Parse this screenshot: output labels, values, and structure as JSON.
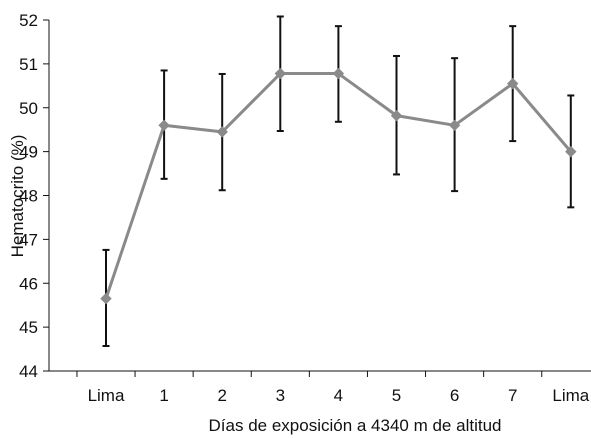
{
  "chart_data": {
    "type": "line",
    "title": "",
    "xlabel": "Días de exposición a 4340 m de altitud",
    "ylabel": "Hematocrito (%)",
    "categories": [
      "Lima",
      "1",
      "2",
      "3",
      "4",
      "5",
      "6",
      "7",
      "Lima"
    ],
    "ylim": [
      44,
      52
    ],
    "yticks": [
      "44",
      "45",
      "46",
      "47",
      "48",
      "49",
      "50",
      "51",
      "52"
    ],
    "grid": false,
    "legend": "none",
    "series": [
      {
        "values": [
          45.65,
          49.6,
          49.45,
          50.78,
          50.78,
          49.82,
          49.6,
          50.55,
          49.0
        ],
        "error_low": [
          44.57,
          48.38,
          48.12,
          49.47,
          49.68,
          48.48,
          48.1,
          49.24,
          47.73
        ],
        "error_high": [
          46.76,
          50.85,
          50.77,
          52.08,
          51.86,
          51.18,
          51.13,
          51.86,
          50.28
        ],
        "color": "#8a8a8a",
        "marker": "diamond"
      }
    ],
    "colors": {
      "line": "#8a8a8a",
      "marker": "#8a8a8a",
      "error_bar": "#111111",
      "axis": "#111111"
    }
  }
}
